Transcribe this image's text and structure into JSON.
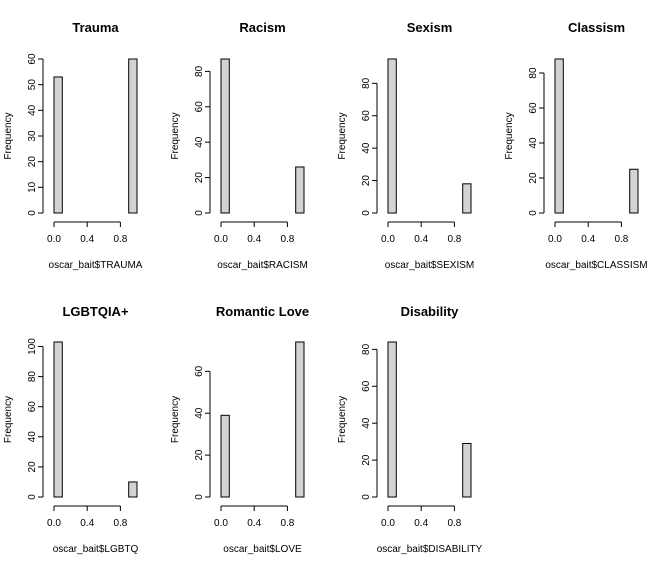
{
  "chart_data": [
    {
      "type": "bar",
      "title": "Trauma",
      "xlabel": "oscar_bait$TRAUMA",
      "ylabel": "Frequency",
      "bins": [
        [
          0.0,
          0.1
        ],
        [
          0.9,
          1.0
        ]
      ],
      "values": [
        53,
        60
      ],
      "xticks": [
        "0.0",
        "0.4",
        "0.8"
      ],
      "yticks": [
        "0",
        "10",
        "20",
        "30",
        "40",
        "50",
        "60"
      ],
      "ylim": [
        0,
        60
      ]
    },
    {
      "type": "bar",
      "title": "Racism",
      "xlabel": "oscar_bait$RACISM",
      "ylabel": "Frequency",
      "bins": [
        [
          0.0,
          0.1
        ],
        [
          0.9,
          1.0
        ]
      ],
      "values": [
        87,
        26
      ],
      "xticks": [
        "0.0",
        "0.4",
        "0.8"
      ],
      "yticks": [
        "0",
        "20",
        "40",
        "60",
        "80"
      ],
      "ylim": [
        0,
        87
      ]
    },
    {
      "type": "bar",
      "title": "Sexism",
      "xlabel": "oscar_bait$SEXISM",
      "ylabel": "Frequency",
      "bins": [
        [
          0.0,
          0.1
        ],
        [
          0.9,
          1.0
        ]
      ],
      "values": [
        95,
        18
      ],
      "xticks": [
        "0.0",
        "0.4",
        "0.8"
      ],
      "yticks": [
        "0",
        "20",
        "40",
        "60",
        "80"
      ],
      "ylim": [
        0,
        95
      ]
    },
    {
      "type": "bar",
      "title": "Classism",
      "xlabel": "oscar_bait$CLASSISM",
      "ylabel": "Frequency",
      "bins": [
        [
          0.0,
          0.1
        ],
        [
          0.9,
          1.0
        ]
      ],
      "values": [
        88,
        25
      ],
      "xticks": [
        "0.0",
        "0.4",
        "0.8"
      ],
      "yticks": [
        "0",
        "20",
        "40",
        "60",
        "80"
      ],
      "ylim": [
        0,
        88
      ]
    },
    {
      "type": "bar",
      "title": "LGBTQIA+",
      "xlabel": "oscar_bait$LGBTQ",
      "ylabel": "Frequency",
      "bins": [
        [
          0.0,
          0.1
        ],
        [
          0.9,
          1.0
        ]
      ],
      "values": [
        103,
        10
      ],
      "xticks": [
        "0.0",
        "0.4",
        "0.8"
      ],
      "yticks": [
        "0",
        "20",
        "40",
        "60",
        "80",
        "100"
      ],
      "ylim": [
        0,
        103
      ]
    },
    {
      "type": "bar",
      "title": "Romantic Love",
      "xlabel": "oscar_bait$LOVE",
      "ylabel": "Frequency",
      "bins": [
        [
          0.0,
          0.1
        ],
        [
          0.9,
          1.0
        ]
      ],
      "values": [
        39,
        74
      ],
      "xticks": [
        "0.0",
        "0.4",
        "0.8"
      ],
      "yticks": [
        "0",
        "20",
        "40",
        "60"
      ],
      "ylim": [
        0,
        74
      ]
    },
    {
      "type": "bar",
      "title": "Disability",
      "xlabel": "oscar_bait$DISABILITY",
      "ylabel": "Frequency",
      "bins": [
        [
          0.0,
          0.1
        ],
        [
          0.9,
          1.0
        ]
      ],
      "values": [
        84,
        29
      ],
      "xticks": [
        "0.0",
        "0.4",
        "0.8"
      ],
      "yticks": [
        "0",
        "20",
        "40",
        "60",
        "80"
      ],
      "ylim": [
        0,
        84
      ]
    }
  ],
  "colors": {
    "bar_fill": "#d3d3d3",
    "bar_stroke": "#000000",
    "axis": "#000000"
  }
}
